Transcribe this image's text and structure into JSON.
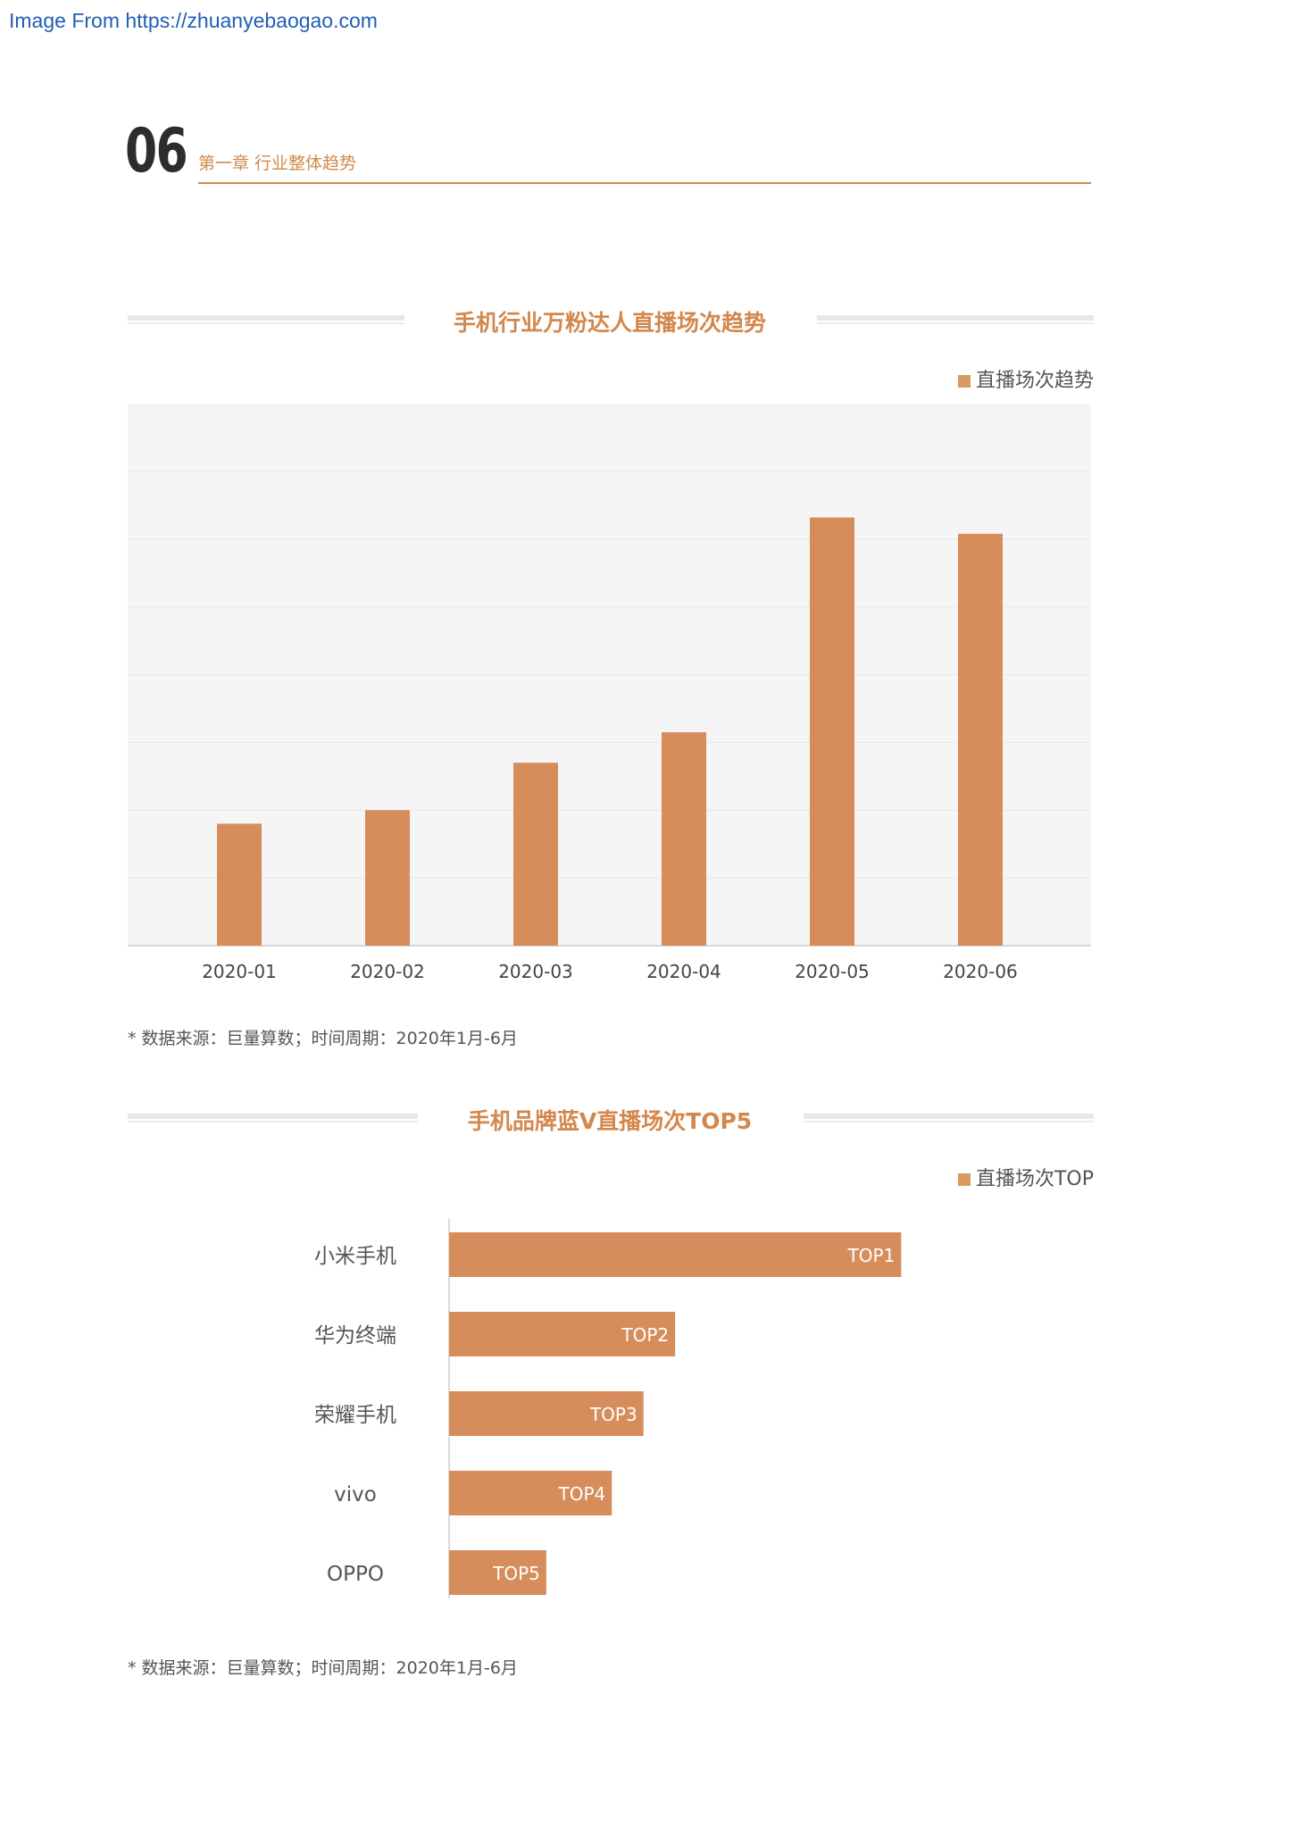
{
  "watermark": "Image From https://zhuanyebaogao.com",
  "page_number": "06",
  "chapter": "第一章  行业整体趋势",
  "colors": {
    "accent": "#d68d5b",
    "title": "#d3874c",
    "plot_bg": "#f5f5f5"
  },
  "chart_data": [
    {
      "type": "bar",
      "title": "手机行业万粉达人直播场次趋势",
      "categories": [
        "2020-01",
        "2020-02",
        "2020-03",
        "2020-04",
        "2020-05",
        "2020-06"
      ],
      "series": [
        {
          "name": "直播场次趋势",
          "values": [
            18,
            20,
            27,
            31.5,
            63.2,
            60.8
          ]
        }
      ],
      "ylim": [
        0,
        80
      ],
      "grid": true,
      "legend_position": "top-right",
      "source": "* 数据来源：巨量算数；时间周期：2020年1月-6月"
    },
    {
      "type": "bar",
      "orientation": "horizontal",
      "title": "手机品牌蓝V直播场次TOP5",
      "categories": [
        "小米手机",
        "华为终端",
        "荣耀手机",
        "vivo",
        "OPPO"
      ],
      "series": [
        {
          "name": "直播场次TOP",
          "values": [
            100,
            50,
            43,
            36,
            21.5
          ],
          "labels": [
            "TOP1",
            "TOP2",
            "TOP3",
            "TOP4",
            "TOP5"
          ]
        }
      ],
      "xlim": [
        0,
        142
      ],
      "legend_position": "top-right",
      "source": "* 数据来源：巨量算数；时间周期：2020年1月-6月"
    }
  ]
}
